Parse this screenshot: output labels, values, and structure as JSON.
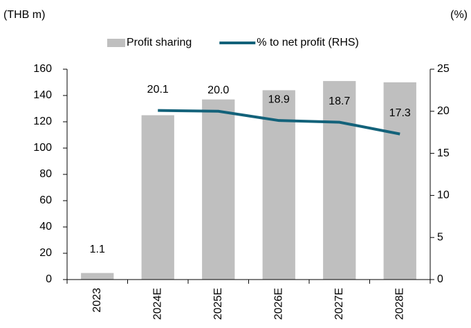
{
  "chart_data": {
    "type": "bar-line",
    "y_unit": "(THB m)",
    "y2_unit": "(%)",
    "categories": [
      "2023",
      "2024E",
      "2025E",
      "2026E",
      "2027E",
      "2028E"
    ],
    "series": [
      {
        "name": "Profit sharing",
        "type": "bar",
        "color": "#bfbfbf",
        "values": [
          5,
          125,
          137,
          144,
          151,
          150
        ]
      },
      {
        "name": "% to net profit (RHS)",
        "type": "line",
        "axis": "y2",
        "color": "#13627a",
        "values": [
          1.1,
          20.1,
          20.0,
          18.9,
          18.7,
          17.3
        ],
        "value_labels": [
          "1.1",
          "20.1",
          "20.0",
          "18.9",
          "18.7",
          "17.3"
        ],
        "line_from": "2024E"
      }
    ],
    "ylim": [
      0,
      160
    ],
    "yticks": [
      0,
      20,
      40,
      60,
      80,
      100,
      120,
      140,
      160
    ],
    "y2lim": [
      0,
      25
    ],
    "y2ticks": [
      0,
      5,
      10,
      15,
      20,
      25
    ],
    "legend": "top"
  }
}
